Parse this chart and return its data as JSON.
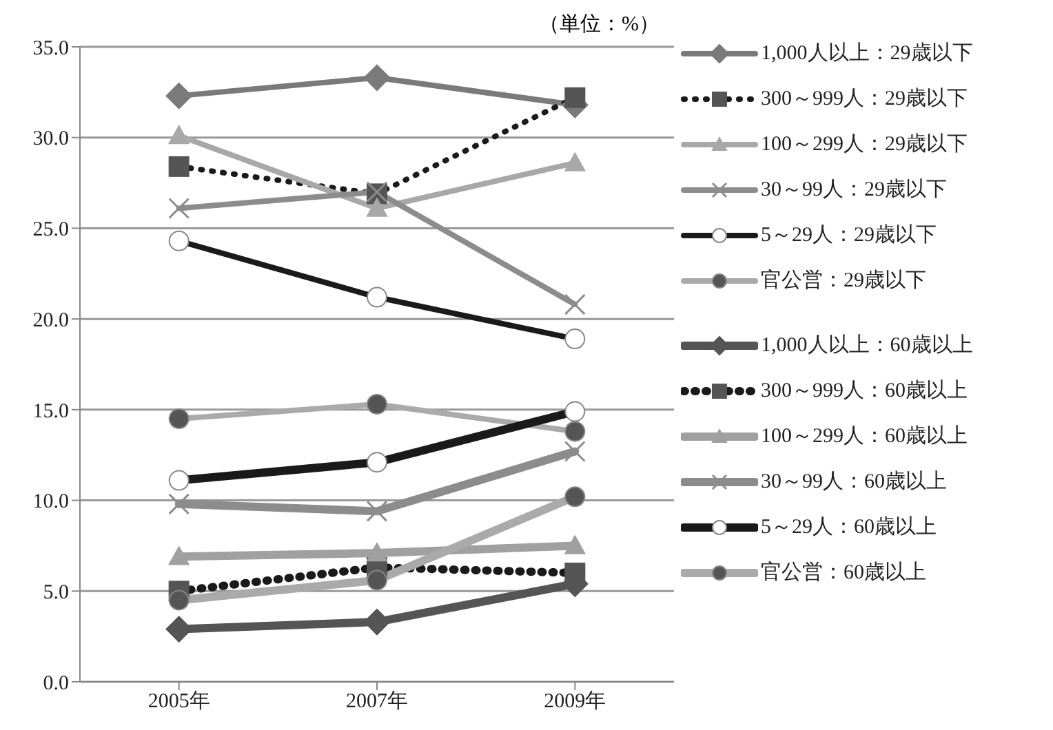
{
  "chart_data": {
    "type": "line",
    "categories": [
      "2005年",
      "2007年",
      "2009年"
    ],
    "series": [
      {
        "name": "1,000人以上：29歳以下",
        "color": "#7a7a7a",
        "marker": "diamond",
        "line_style": "solid",
        "values": [
          32.3,
          33.3,
          31.8
        ]
      },
      {
        "name": "300～999人：29歳以下",
        "color": "#1a1a1a",
        "marker": "square",
        "line_style": "dotted",
        "values": [
          28.4,
          26.9,
          32.2
        ]
      },
      {
        "name": "100～299人：29歳以下",
        "color": "#a8a8a8",
        "marker": "triangle",
        "line_style": "solid",
        "values": [
          30.1,
          26.1,
          28.6
        ]
      },
      {
        "name": "30～99人：29歳以下",
        "color": "#8c8c8c",
        "marker": "cross",
        "line_style": "solid",
        "values": [
          26.1,
          27.0,
          20.8
        ]
      },
      {
        "name": "5～29人：29歳以下",
        "color": "#1a1a1a",
        "marker": "circle",
        "line_style": "solid",
        "values": [
          24.3,
          21.2,
          18.9
        ]
      },
      {
        "name": "官公営：29歳以下",
        "color": "#aaaaaa",
        "marker": "circle",
        "line_style": "solid",
        "values": [
          14.5,
          15.3,
          13.8
        ]
      },
      {
        "name": "1,000人以上：60歳以上",
        "color": "#555555",
        "marker": "diamond",
        "line_style": "solid",
        "values": [
          2.9,
          3.3,
          5.4
        ]
      },
      {
        "name": "300～999人：60歳以上",
        "color": "#1a1a1a",
        "marker": "square",
        "line_style": "dotted",
        "values": [
          5.0,
          6.3,
          6.0
        ]
      },
      {
        "name": "100～299人：60歳以上",
        "color": "#a0a0a0",
        "marker": "triangle",
        "line_style": "solid",
        "values": [
          6.9,
          7.1,
          7.5
        ]
      },
      {
        "name": "30～99人：60歳以上",
        "color": "#8c8c8c",
        "marker": "cross",
        "line_style": "solid",
        "values": [
          9.8,
          9.4,
          12.7
        ]
      },
      {
        "name": "5～29人：60歳以上",
        "color": "#1a1a1a",
        "marker": "circle",
        "line_style": "solid",
        "values": [
          11.1,
          12.1,
          14.9
        ]
      },
      {
        "name": "官公営：60歳以上",
        "color": "#aaaaaa",
        "marker": "circle",
        "line_style": "solid",
        "values": [
          4.5,
          5.6,
          10.2
        ]
      }
    ],
    "ylim": [
      0,
      35
    ],
    "yticks": [
      {
        "value": 0,
        "label": "0.0"
      },
      {
        "value": 5,
        "label": "5.0"
      },
      {
        "value": 10,
        "label": "10.0"
      },
      {
        "value": 15,
        "label": "15.0"
      },
      {
        "value": 20,
        "label": "20.0"
      },
      {
        "value": 25,
        "label": "25.0"
      },
      {
        "value": 30,
        "label": "30.0"
      },
      {
        "value": 35,
        "label": "35.0"
      }
    ],
    "grid": "y",
    "legend": "right",
    "annotations": [
      "（単位：%）"
    ]
  }
}
